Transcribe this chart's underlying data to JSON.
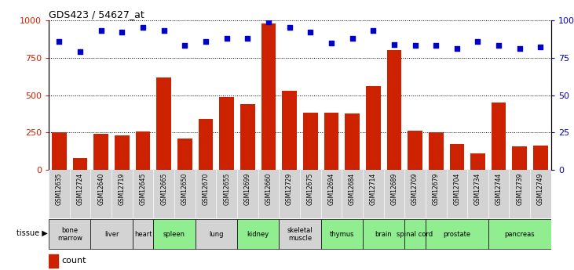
{
  "title": "GDS423 / 54627_at",
  "samples": [
    "GSM12635",
    "GSM12724",
    "GSM12640",
    "GSM12719",
    "GSM12645",
    "GSM12665",
    "GSM12650",
    "GSM12670",
    "GSM12655",
    "GSM12699",
    "GSM12660",
    "GSM12729",
    "GSM12675",
    "GSM12694",
    "GSM12684",
    "GSM12714",
    "GSM12689",
    "GSM12709",
    "GSM12679",
    "GSM12704",
    "GSM12734",
    "GSM12744",
    "GSM12739",
    "GSM12749"
  ],
  "counts": [
    250,
    80,
    240,
    230,
    260,
    620,
    210,
    340,
    490,
    440,
    980,
    530,
    385,
    385,
    380,
    560,
    800,
    265,
    255,
    175,
    110,
    450,
    160,
    165
  ],
  "percentiles": [
    86,
    79,
    93,
    92,
    95,
    93,
    83,
    86,
    88,
    88,
    99,
    95,
    92,
    85,
    88,
    93,
    84,
    83,
    83,
    81,
    86,
    83,
    81,
    82
  ],
  "tissues": [
    {
      "name": "bone\nmarrow",
      "start": 0,
      "end": 2,
      "color": "#d3d3d3"
    },
    {
      "name": "liver",
      "start": 2,
      "end": 4,
      "color": "#d3d3d3"
    },
    {
      "name": "heart",
      "start": 4,
      "end": 5,
      "color": "#d3d3d3"
    },
    {
      "name": "spleen",
      "start": 5,
      "end": 7,
      "color": "#90ee90"
    },
    {
      "name": "lung",
      "start": 7,
      "end": 9,
      "color": "#d3d3d3"
    },
    {
      "name": "kidney",
      "start": 9,
      "end": 11,
      "color": "#90ee90"
    },
    {
      "name": "skeletal\nmuscle",
      "start": 11,
      "end": 13,
      "color": "#d3d3d3"
    },
    {
      "name": "thymus",
      "start": 13,
      "end": 15,
      "color": "#90ee90"
    },
    {
      "name": "brain",
      "start": 15,
      "end": 17,
      "color": "#90ee90"
    },
    {
      "name": "spinal cord",
      "start": 17,
      "end": 18,
      "color": "#90ee90"
    },
    {
      "name": "prostate",
      "start": 18,
      "end": 21,
      "color": "#90ee90"
    },
    {
      "name": "pancreas",
      "start": 21,
      "end": 24,
      "color": "#90ee90"
    }
  ],
  "bar_color": "#cc2200",
  "dot_color": "#0000cc",
  "ylim_left": [
    0,
    1000
  ],
  "ylim_right": [
    0,
    100
  ],
  "yticks_left": [
    0,
    250,
    500,
    750,
    1000
  ],
  "yticks_right": [
    0,
    25,
    50,
    75,
    100
  ],
  "xtick_bg_color": "#d3d3d3"
}
